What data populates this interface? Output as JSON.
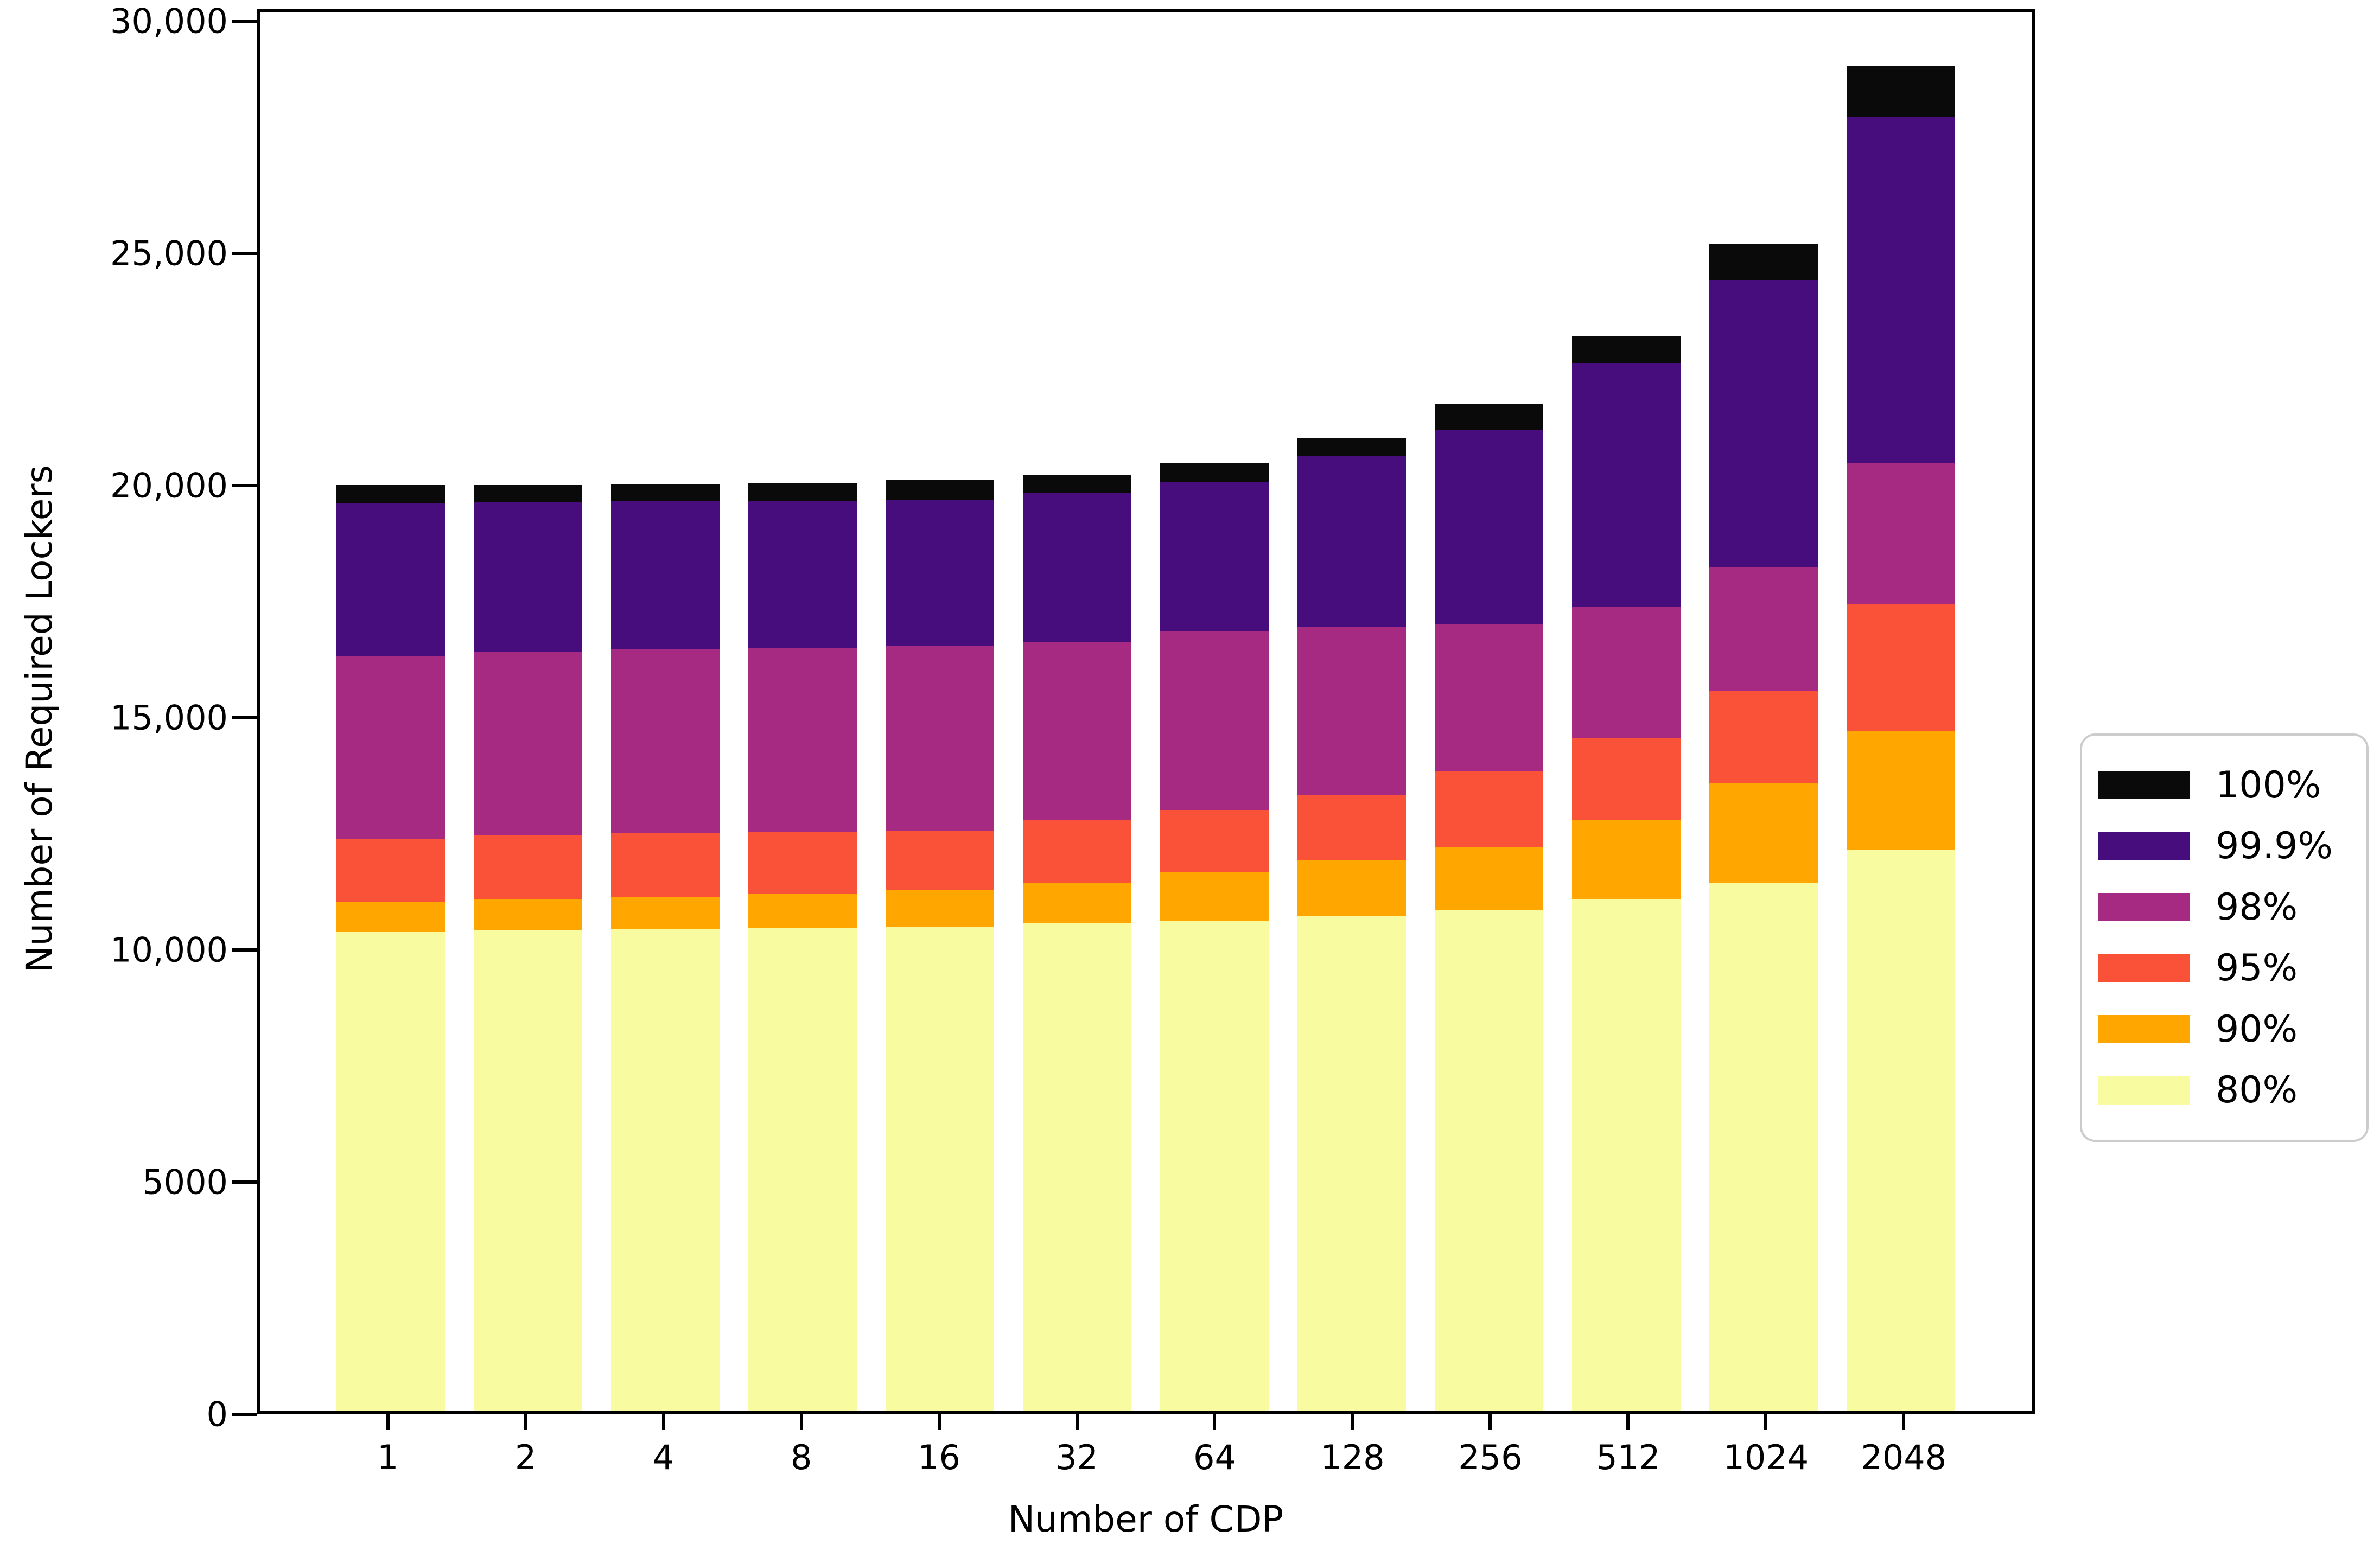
{
  "figure": {
    "background": "#ffffff",
    "xlabel": "Number of CDP",
    "ylabel": "Number of Required Lockers"
  },
  "y_axis": {
    "ticks": [
      {
        "value": 0,
        "label": "0"
      },
      {
        "value": 5000,
        "label": "5000"
      },
      {
        "value": 10000,
        "label": "10,000"
      },
      {
        "value": 15000,
        "label": "15,000"
      },
      {
        "value": 20000,
        "label": "20,000"
      },
      {
        "value": 25000,
        "label": "25,000"
      },
      {
        "value": 30000,
        "label": "30,000"
      }
    ],
    "max": 30260
  },
  "legend": {
    "position": "right",
    "entries": [
      {
        "label": "100%",
        "color": "#0a0a0a"
      },
      {
        "label": "99.9%",
        "color": "#470d7d"
      },
      {
        "label": "98%",
        "color": "#a62a82"
      },
      {
        "label": "95%",
        "color": "#fa5239"
      },
      {
        "label": "90%",
        "color": "#ffa600"
      },
      {
        "label": "80%",
        "color": "#f9fba1"
      }
    ]
  },
  "chart_data": {
    "type": "bar",
    "stacked": true,
    "title": "",
    "xlabel": "Number of CDP",
    "ylabel": "Number of Required Lockers",
    "ylim": [
      0,
      30260
    ],
    "grid": false,
    "legend_position": "center right outside",
    "categories": [
      "1",
      "2",
      "4",
      "8",
      "16",
      "32",
      "64",
      "128",
      "256",
      "512",
      "1024",
      "2048"
    ],
    "series_note": "cumulative_tops[i] is the stacked height (number of required lockers) reached at the top of each service-level band; bands drawn bottom-to-top in listed order",
    "series": [
      {
        "name": "80%",
        "color": "#f9fba1",
        "cumulative_tops": [
          10320,
          10350,
          10370,
          10400,
          10430,
          10500,
          10550,
          10650,
          10800,
          11030,
          11380,
          12080
        ]
      },
      {
        "name": "90%",
        "color": "#ffa600",
        "cumulative_tops": [
          10960,
          11030,
          11080,
          11150,
          11220,
          11380,
          11600,
          11860,
          12150,
          12730,
          13530,
          14650
        ]
      },
      {
        "name": "95%",
        "color": "#fa5239",
        "cumulative_tops": [
          12310,
          12410,
          12440,
          12470,
          12500,
          12730,
          12950,
          13270,
          13780,
          14490,
          15510,
          17370
        ]
      },
      {
        "name": "98%",
        "color": "#a62a82",
        "cumulative_tops": [
          16250,
          16350,
          16400,
          16440,
          16480,
          16570,
          16800,
          16900,
          16950,
          17310,
          18170,
          20420
        ]
      },
      {
        "name": "99.9%",
        "color": "#470d7d",
        "cumulative_tops": [
          19550,
          19570,
          19590,
          19600,
          19620,
          19780,
          20000,
          20580,
          21120,
          22570,
          24360,
          27860
        ]
      },
      {
        "name": "100%",
        "color": "#0a0a0a",
        "cumulative_tops": [
          19940,
          19950,
          19960,
          19980,
          20050,
          20150,
          20420,
          20960,
          21700,
          23140,
          25130,
          28980
        ]
      }
    ]
  }
}
